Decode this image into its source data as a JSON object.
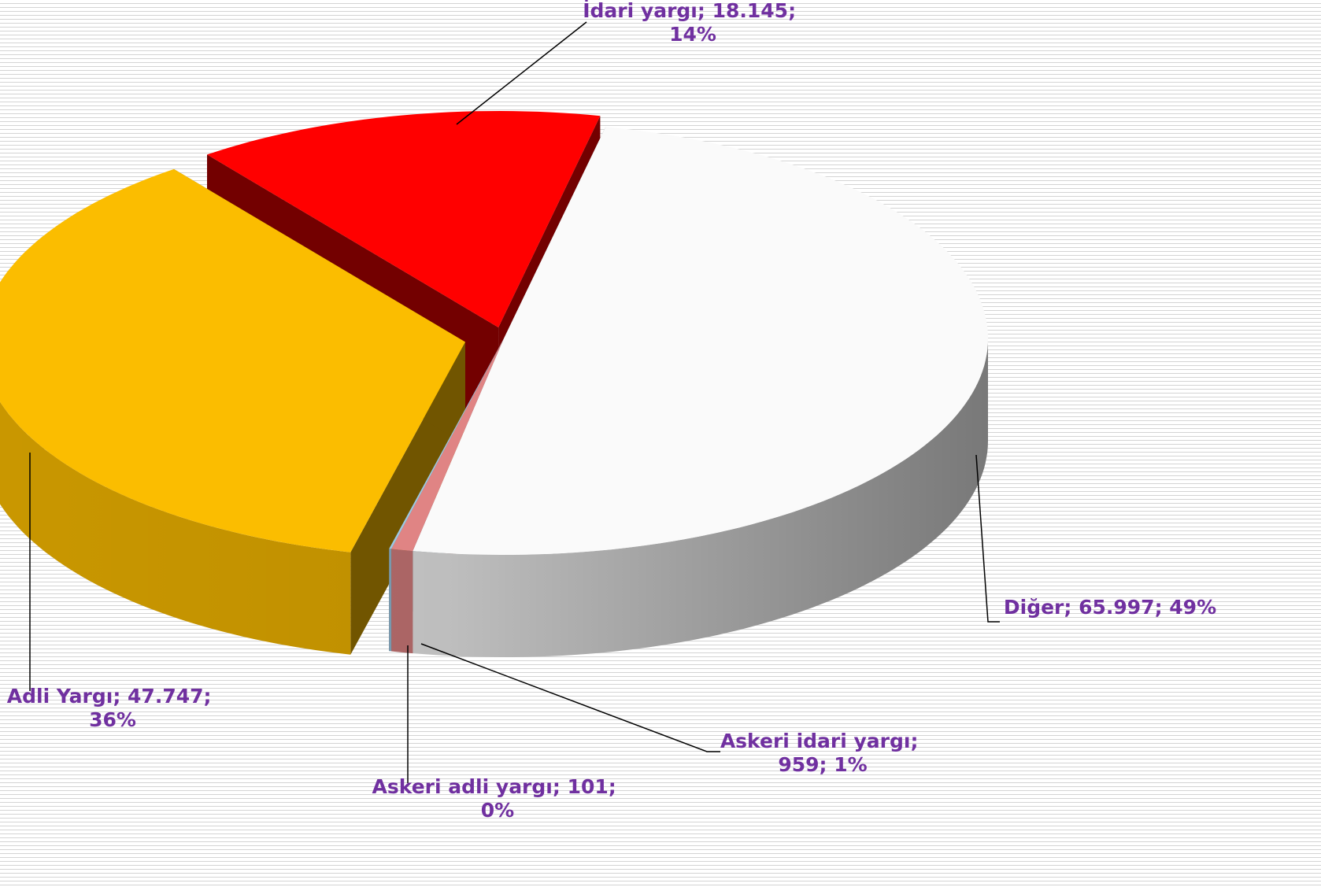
{
  "chart_data": {
    "type": "pie3d",
    "categories": [
      "İdari yargı",
      "Diğer",
      "Askeri idari yargı",
      "Askeri adli yargı",
      "Adli Yargı"
    ],
    "values": [
      18145,
      65997,
      959,
      101,
      47747
    ],
    "value_labels": [
      "18.145",
      "65.997",
      "959",
      "101",
      "47.747"
    ],
    "percents": [
      14,
      49,
      1,
      0,
      36
    ],
    "percent_labels": [
      "14%",
      "49%",
      "1%",
      "0%",
      "36%"
    ],
    "separator": "; ",
    "colors": [
      "#ff0000",
      "#fafafa",
      "#e08484",
      "#9cc8e4",
      "#fbbd00"
    ],
    "label_color": "#7030a0"
  }
}
